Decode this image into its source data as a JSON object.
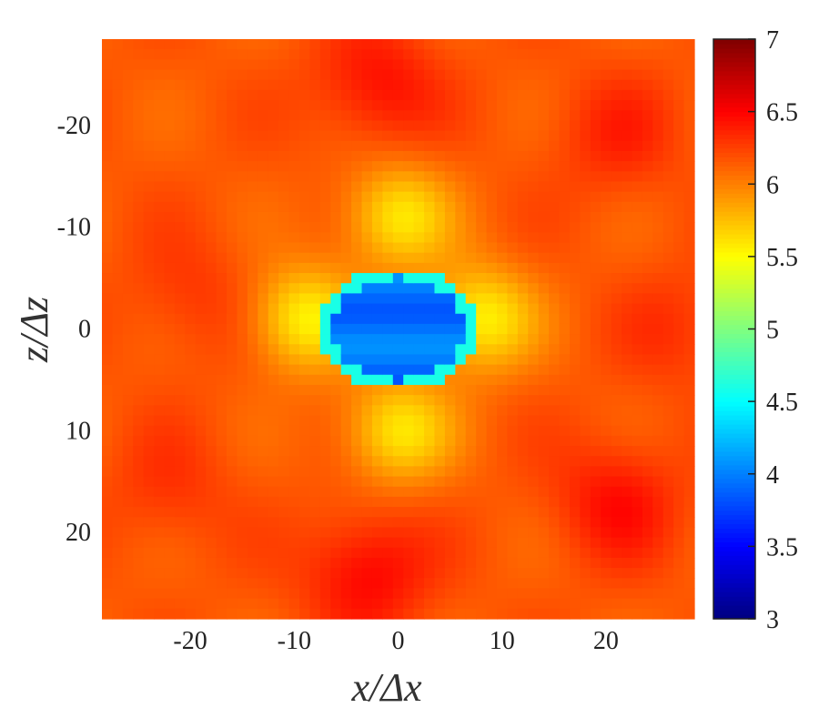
{
  "chart_data": {
    "type": "heatmap",
    "title": "",
    "xlabel": "x/Δx",
    "ylabel": "z/Δz",
    "xlim": [
      -28.5,
      28.5
    ],
    "ylim": [
      -28.5,
      28.5
    ],
    "y_inverted": true,
    "x_ticks": [
      -20,
      -10,
      0,
      10,
      20
    ],
    "y_ticks": [
      -20,
      -10,
      0,
      10,
      20
    ],
    "x_tick_labels": [
      "-20",
      "-10",
      "0",
      "10",
      "20"
    ],
    "y_tick_labels": [
      "-20",
      "-10",
      "0",
      "10",
      "20"
    ],
    "colorbar": {
      "range": [
        3,
        7
      ],
      "ticks": [
        3,
        3.5,
        4,
        4.5,
        5,
        5.5,
        6,
        6.5,
        7
      ],
      "tick_labels": [
        "3",
        "3.5",
        "4",
        "4.5",
        "5",
        "5.5",
        "6",
        "6.5",
        "7"
      ],
      "colormap": "jet"
    },
    "field": {
      "background": 6.15,
      "description_free_values": true,
      "core": {
        "center": [
          0,
          0
        ],
        "radius_x": 7.5,
        "radius_z": 6.0,
        "value": 3.95
      },
      "core_rim": {
        "width": 1.2,
        "value": 4.6
      },
      "bright_lobes": [
        {
          "center": [
            0,
            -11
          ],
          "value": 5.6
        },
        {
          "center": [
            0,
            10
          ],
          "value": 5.6
        },
        {
          "center": [
            -9,
            -1
          ],
          "value": 5.55
        },
        {
          "center": [
            8,
            -1
          ],
          "value": 5.55
        }
      ],
      "hot_spots": [
        {
          "center": [
            -2,
            -24
          ],
          "value": 6.45
        },
        {
          "center": [
            -3,
            24
          ],
          "value": 6.5
        },
        {
          "center": [
            21,
            -19
          ],
          "value": 6.35
        },
        {
          "center": [
            21,
            17
          ],
          "value": 6.45
        },
        {
          "center": [
            -22,
            16
          ],
          "value": 6.3
        },
        {
          "center": [
            27,
            0
          ],
          "value": 6.3
        },
        {
          "center": [
            -20,
            -3
          ],
          "value": 6.3
        }
      ]
    }
  }
}
